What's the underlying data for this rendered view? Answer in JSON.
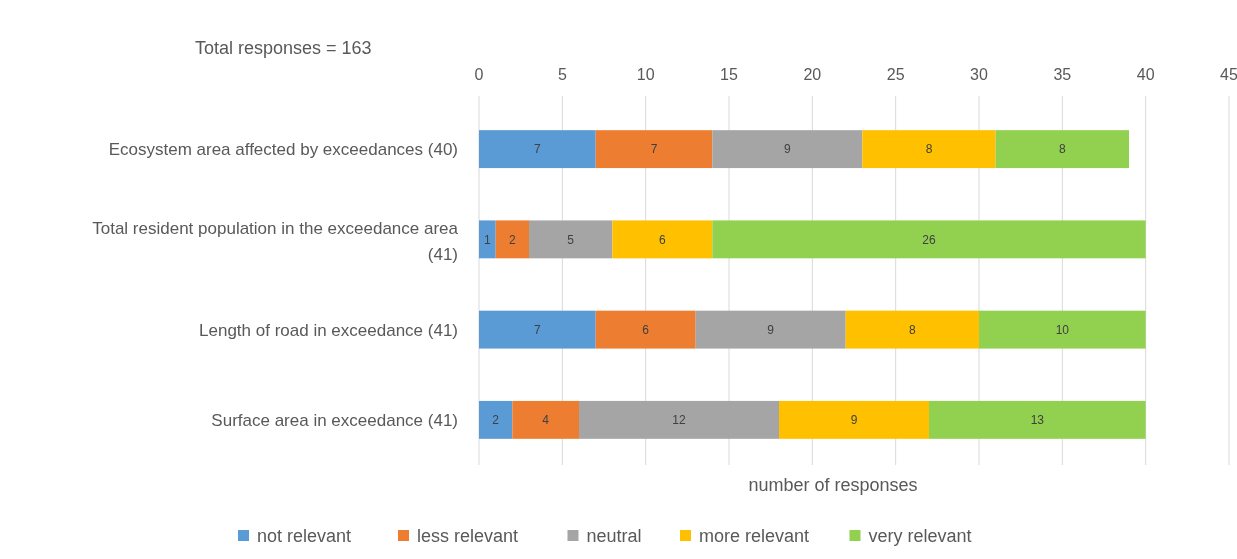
{
  "chart_data": {
    "type": "bar",
    "orientation": "horizontal",
    "stacked": true,
    "data_labels": true,
    "grid": "x",
    "legend": "bottom",
    "xlabel": "number of responses",
    "annotations": [
      "Total responses = 163"
    ],
    "categories": [
      "Ecosystem area affected by exceedances (40)",
      "Total resident population in the exceedance area (41)",
      "Length of road in exceedance (41)",
      "Surface area in exceedance (41)"
    ],
    "xlim": [
      0,
      45
    ],
    "xticks": [
      0,
      5,
      10,
      15,
      20,
      25,
      30,
      35,
      40,
      45
    ],
    "series": [
      {
        "name": "not relevant",
        "color": "#5b9bd5",
        "values": [
          7,
          1,
          7,
          2
        ]
      },
      {
        "name": "less relevant",
        "color": "#ed7d31",
        "values": [
          7,
          2,
          6,
          4
        ]
      },
      {
        "name": "neutral",
        "color": "#a5a5a5",
        "values": [
          9,
          5,
          9,
          12
        ]
      },
      {
        "name": "more relevant",
        "color": "#ffc000",
        "values": [
          8,
          6,
          8,
          9
        ]
      },
      {
        "name": "very relevant",
        "color": "#92d050",
        "values": [
          8,
          26,
          10,
          13
        ]
      }
    ]
  }
}
